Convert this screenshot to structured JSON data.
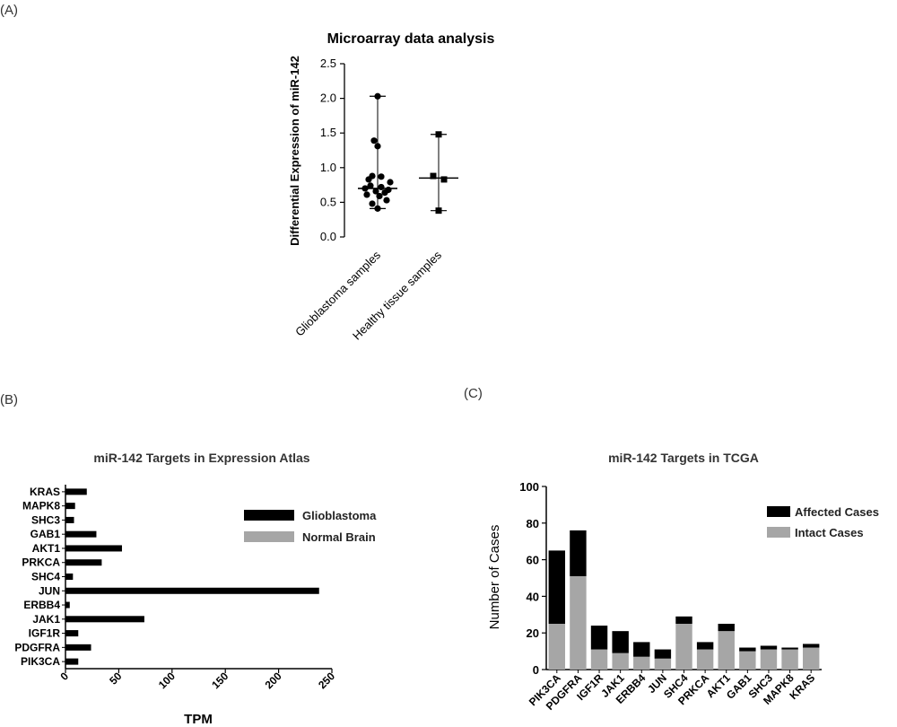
{
  "panels": {
    "a": "(A)",
    "b": "(B)",
    "c": "(C)"
  },
  "chart_data": [
    {
      "id": "A",
      "type": "scatter",
      "title": "Microarray data analysis",
      "ylabel": "Differential Expression of miR-142",
      "ylim": [
        0,
        2.5
      ],
      "yticks": [
        "0.0",
        "0.5",
        "1.0",
        "1.5",
        "2.0",
        "2.5"
      ],
      "categories": [
        "Glioblastoma samples",
        "Healthy tissue samples"
      ],
      "series": [
        {
          "marker": "circle",
          "values": [
            2.03,
            1.39,
            1.31,
            0.88,
            0.87,
            0.83,
            0.79,
            0.74,
            0.72,
            0.7,
            0.68,
            0.66,
            0.64,
            0.61,
            0.59,
            0.53,
            0.48,
            0.41
          ],
          "median": 0.7,
          "range": [
            0.41,
            2.03
          ]
        },
        {
          "marker": "square",
          "values": [
            1.48,
            0.88,
            0.83,
            0.38
          ],
          "median": 0.85,
          "range": [
            0.38,
            1.48
          ]
        }
      ]
    },
    {
      "id": "B",
      "type": "bar",
      "orientation": "horizontal",
      "title": "miR-142 Targets in Expression Atlas",
      "xlabel": "TPM",
      "xlim": [
        0,
        250
      ],
      "xticks": [
        "0",
        "50",
        "100",
        "150",
        "200",
        "250"
      ],
      "categories": [
        "KRAS",
        "MAPK8",
        "SHC3",
        "GAB1",
        "AKT1",
        "PRKCA",
        "SHC4",
        "JUN",
        "ERBB4",
        "JAK1",
        "IGF1R",
        "PDGFRA",
        "PIK3CA"
      ],
      "series": [
        {
          "name": "Glioblastoma",
          "color": "#000000",
          "values": [
            20,
            9,
            8,
            29,
            53,
            34,
            7,
            238,
            4,
            74,
            12,
            24,
            12
          ]
        },
        {
          "name": "Normal Brain",
          "color": "#a6a6a6",
          "values": [
            0,
            0,
            0,
            0,
            0,
            0,
            0,
            0,
            0,
            0,
            0,
            0,
            0
          ]
        }
      ],
      "legend": "right"
    },
    {
      "id": "C",
      "type": "bar",
      "stacked": true,
      "title": "miR-142 Targets in TCGA",
      "ylabel": "Number of Cases",
      "ylim": [
        0,
        100
      ],
      "yticks": [
        "0",
        "20",
        "40",
        "60",
        "80",
        "100"
      ],
      "categories": [
        "PIK3CA",
        "PDGFRA",
        "IGF1R",
        "JAK1",
        "ERBB4",
        "JUN",
        "SHC4",
        "PRKCA",
        "AKT1",
        "GAB1",
        "SHC3",
        "MAPK8",
        "KRAS"
      ],
      "series": [
        {
          "name": "Intact Cases",
          "color": "#a6a6a6",
          "values": [
            25,
            51,
            11,
            9,
            7,
            6,
            25,
            11,
            21,
            10,
            11,
            11,
            12
          ]
        },
        {
          "name": "Affected Cases",
          "color": "#000000",
          "values": [
            40,
            25,
            13,
            12,
            8,
            5,
            4,
            4,
            4,
            2,
            2,
            1,
            2
          ]
        }
      ],
      "legend": "top-right"
    }
  ]
}
